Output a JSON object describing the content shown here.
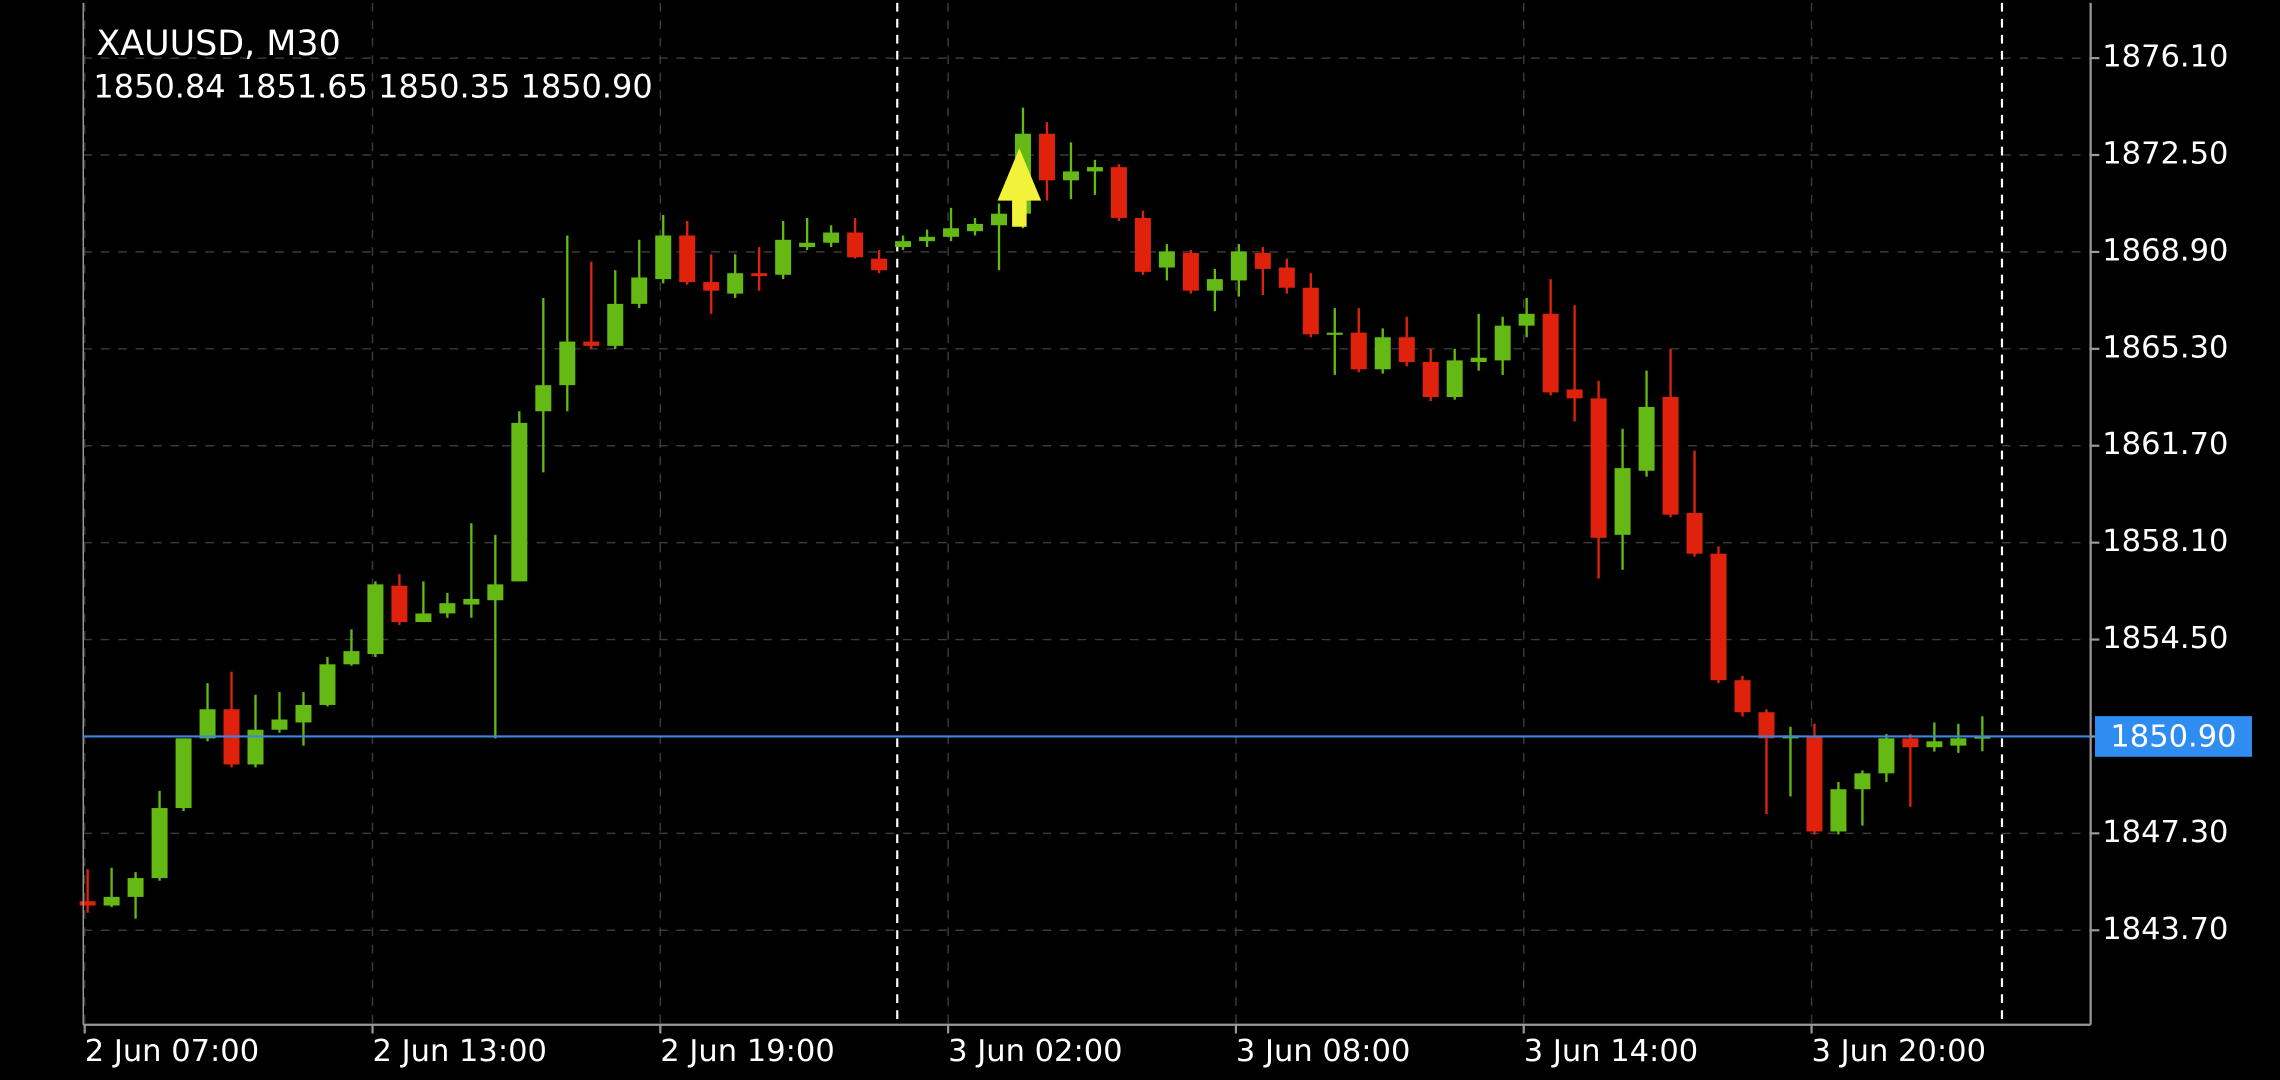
{
  "chart_data": {
    "type": "candlestick",
    "title": "XAUUSD, M30",
    "subtitle": "1850.84 1851.65 1850.35 1850.90",
    "categories": [
      "2 Jun 07:00",
      null,
      null,
      null,
      null,
      null,
      null,
      null,
      null,
      null,
      null,
      null,
      "2 Jun 13:00",
      null,
      null,
      null,
      null,
      null,
      null,
      null,
      null,
      null,
      null,
      null,
      "2 Jun 19:00",
      null,
      null,
      null,
      null,
      null,
      null,
      null,
      null,
      null,
      null,
      null,
      "3 Jun 02:00",
      null,
      null,
      null,
      null,
      null,
      null,
      null,
      null,
      null,
      null,
      null,
      "3 Jun 08:00",
      null,
      null,
      null,
      null,
      null,
      null,
      null,
      null,
      null,
      null,
      null,
      "3 Jun 14:00",
      null,
      null,
      null,
      null,
      null,
      null,
      null,
      null,
      null,
      null,
      null,
      "3 Jun 20:00",
      null,
      null,
      null,
      null,
      null,
      null,
      null
    ],
    "open": [
      1844.78,
      1844.62,
      1844.94,
      1845.64,
      1848.24,
      1850.83,
      1851.91,
      1849.86,
      1851.15,
      1851.42,
      1852.07,
      1853.58,
      1853.96,
      1856.5,
      1855.15,
      1855.47,
      1855.8,
      1855.96,
      1856.66,
      1862.98,
      1863.95,
      1865.57,
      1865.41,
      1866.97,
      1867.89,
      1869.51,
      1867.78,
      1867.35,
      1868.11,
      1868.05,
      1869.08,
      1869.24,
      1869.62,
      1868.65,
      1869.08,
      1869.3,
      1869.46,
      1869.67,
      1869.89,
      1870.32,
      1873.29,
      1871.56,
      1871.89,
      1872.05,
      1870.16,
      1868.32,
      1868.86,
      1867.46,
      1867.84,
      1868.86,
      1868.32,
      1867.57,
      1865.84,
      1865.9,
      1864.54,
      1865.73,
      1864.81,
      1863.51,
      1864.81,
      1864.87,
      1866.16,
      1866.6,
      1863.79,
      1863.46,
      1858.39,
      1860.77,
      1863.51,
      1859.2,
      1857.69,
      1852.99,
      1851.8,
      1850.83,
      1850.88,
      1847.37,
      1848.94,
      1849.53,
      1850.83,
      1850.5,
      1850.56,
      1850.84
    ],
    "high": [
      1845.97,
      1846.02,
      1845.86,
      1848.88,
      1850.83,
      1852.88,
      1853.31,
      1852.45,
      1852.55,
      1852.55,
      1853.85,
      1854.88,
      1856.66,
      1856.93,
      1856.66,
      1856.23,
      1858.82,
      1858.39,
      1862.98,
      1867.19,
      1869.51,
      1868.54,
      1868.22,
      1869.35,
      1870.27,
      1870.05,
      1868.81,
      1868.81,
      1869.08,
      1870.05,
      1870.16,
      1869.89,
      1870.16,
      1868.97,
      1869.51,
      1869.73,
      1870.54,
      1870.16,
      1870.7,
      1874.26,
      1873.72,
      1872.97,
      1872.32,
      1872.16,
      1870.43,
      1869.19,
      1868.97,
      1868.27,
      1869.19,
      1869.08,
      1868.65,
      1868.11,
      1866.81,
      1866.81,
      1866.06,
      1866.49,
      1865.3,
      1865.3,
      1866.6,
      1866.49,
      1867.19,
      1867.89,
      1866.92,
      1864.11,
      1862.33,
      1864.49,
      1865.3,
      1861.52,
      1857.96,
      1853.15,
      1851.91,
      1851.26,
      1851.37,
      1849.21,
      1849.64,
      1850.99,
      1850.99,
      1851.42,
      1851.37,
      1851.65
    ],
    "low": [
      1844.35,
      1844.56,
      1844.13,
      1845.54,
      1848.13,
      1850.72,
      1849.75,
      1849.75,
      1851.04,
      1850.56,
      1852.02,
      1853.53,
      1853.85,
      1855.04,
      1855.15,
      1855.31,
      1855.31,
      1850.83,
      1856.66,
      1860.71,
      1862.98,
      1865.3,
      1865.3,
      1866.81,
      1867.73,
      1867.68,
      1866.6,
      1867.19,
      1867.46,
      1867.89,
      1868.97,
      1869.08,
      1868.65,
      1868.11,
      1868.97,
      1869.08,
      1869.3,
      1869.51,
      1868.22,
      1869.78,
      1870.81,
      1870.86,
      1871.02,
      1870.05,
      1868.05,
      1867.84,
      1867.35,
      1866.7,
      1867.24,
      1867.3,
      1867.35,
      1865.73,
      1864.33,
      1864.43,
      1864.38,
      1864.65,
      1863.36,
      1863.41,
      1864.49,
      1864.33,
      1865.73,
      1863.57,
      1862.6,
      1856.77,
      1857.09,
      1860.55,
      1859.04,
      1857.58,
      1852.88,
      1851.64,
      1848.02,
      1848.67,
      1847.26,
      1847.26,
      1847.59,
      1849.21,
      1848.29,
      1850.34,
      1850.29,
      1850.35
    ],
    "close": [
      1844.62,
      1844.94,
      1845.64,
      1848.24,
      1850.83,
      1851.91,
      1849.86,
      1851.15,
      1851.53,
      1852.07,
      1853.58,
      1854.07,
      1856.55,
      1855.15,
      1855.47,
      1855.85,
      1856.01,
      1856.55,
      1862.55,
      1863.95,
      1865.57,
      1865.41,
      1866.97,
      1867.95,
      1869.51,
      1867.78,
      1867.46,
      1868.11,
      1868.0,
      1869.35,
      1869.24,
      1869.62,
      1868.7,
      1868.22,
      1869.3,
      1869.46,
      1869.78,
      1869.94,
      1870.32,
      1873.29,
      1871.56,
      1871.89,
      1872.05,
      1870.16,
      1868.16,
      1868.92,
      1867.46,
      1867.89,
      1868.92,
      1868.27,
      1867.57,
      1865.84,
      1865.9,
      1864.54,
      1865.73,
      1864.81,
      1863.51,
      1864.87,
      1864.97,
      1866.16,
      1866.6,
      1863.68,
      1863.46,
      1858.28,
      1860.87,
      1863.14,
      1859.14,
      1857.69,
      1852.99,
      1851.8,
      1850.83,
      1850.94,
      1847.37,
      1848.94,
      1849.53,
      1850.83,
      1850.5,
      1850.72,
      1850.83,
      1850.9
    ],
    "up_color": "#64b914",
    "down_color": "#e0220d",
    "ylim": [
      1840.19,
      1878.15
    ],
    "yticks": [
      {
        "value": 1843.7,
        "label": "1843.70"
      },
      {
        "value": 1847.3,
        "label": "1847.30"
      },
      {
        "value": 1850.9,
        "label": "1850.90"
      },
      {
        "value": 1854.5,
        "label": "1854.50"
      },
      {
        "value": 1858.1,
        "label": "1858.10"
      },
      {
        "value": 1861.7,
        "label": "1861.70"
      },
      {
        "value": 1865.3,
        "label": "1865.30"
      },
      {
        "value": 1868.9,
        "label": "1868.90"
      },
      {
        "value": 1872.5,
        "label": "1872.50"
      },
      {
        "value": 1876.1,
        "label": "1876.10"
      }
    ],
    "current_price": {
      "value": 1850.9,
      "label": "1850.90"
    },
    "grid": true
  }
}
